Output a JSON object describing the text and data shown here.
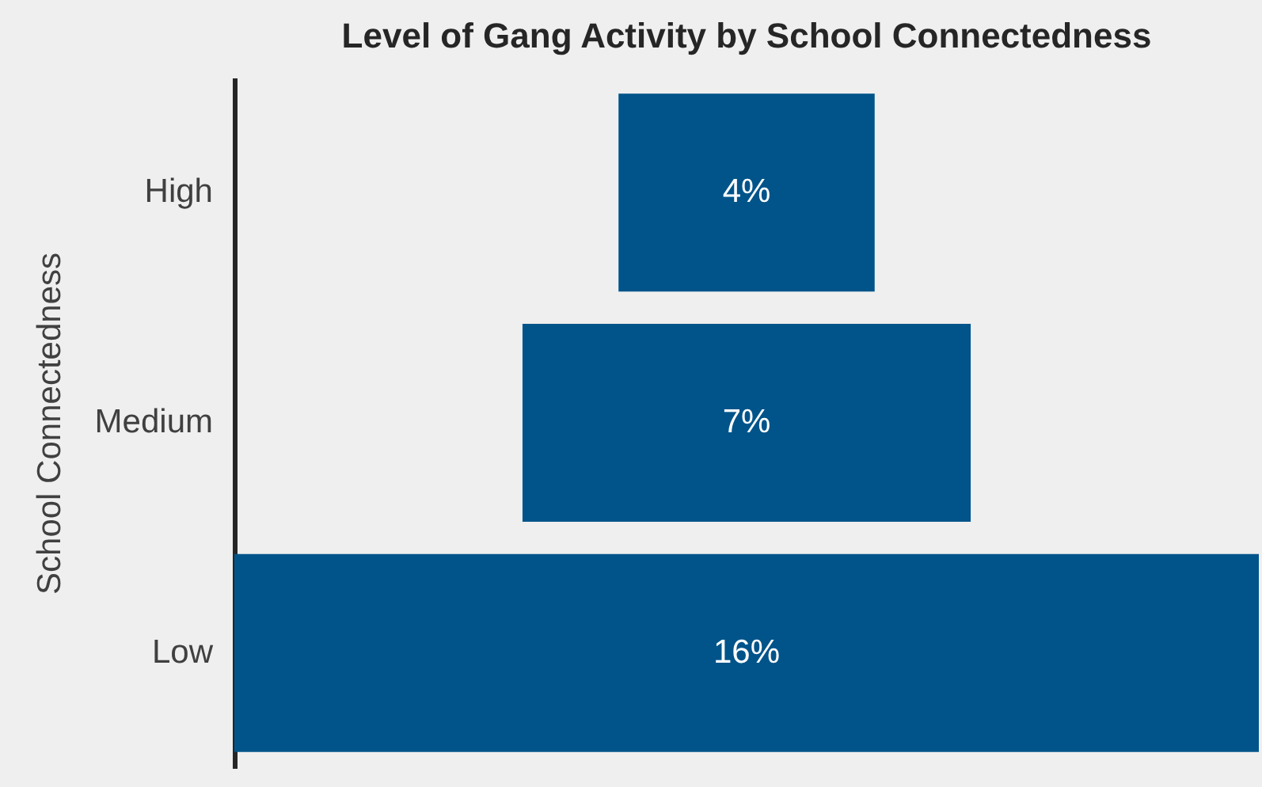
{
  "chart_data": {
    "type": "other",
    "title": "Level of Gang Activity by School Connectedness",
    "ylabel": "School Connectedness",
    "categories": [
      "High",
      "Medium",
      "Low"
    ],
    "values": [
      4,
      7,
      16
    ],
    "value_labels": [
      "4%",
      "7%",
      "16%"
    ],
    "color": "#00548a"
  }
}
